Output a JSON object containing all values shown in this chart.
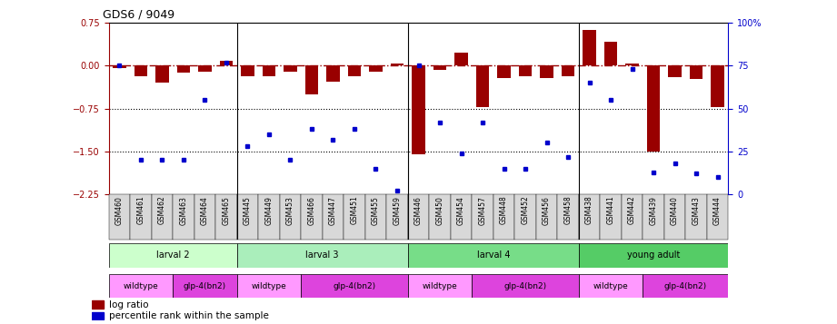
{
  "title": "GDS6 / 9049",
  "samples": [
    "GSM460",
    "GSM461",
    "GSM462",
    "GSM463",
    "GSM464",
    "GSM465",
    "GSM445",
    "GSM449",
    "GSM453",
    "GSM466",
    "GSM447",
    "GSM451",
    "GSM455",
    "GSM459",
    "GSM446",
    "GSM450",
    "GSM454",
    "GSM457",
    "GSM448",
    "GSM452",
    "GSM456",
    "GSM458",
    "GSM438",
    "GSM441",
    "GSM442",
    "GSM439",
    "GSM440",
    "GSM443",
    "GSM444"
  ],
  "log_ratio": [
    -0.05,
    -0.18,
    -0.3,
    -0.13,
    -0.1,
    0.08,
    -0.18,
    -0.18,
    -0.1,
    -0.5,
    -0.28,
    -0.18,
    -0.1,
    0.04,
    -1.55,
    -0.08,
    0.22,
    -0.72,
    -0.22,
    -0.18,
    -0.22,
    -0.18,
    0.62,
    0.42,
    0.03,
    -1.5,
    -0.2,
    -0.23,
    -0.72
  ],
  "percentile": [
    75,
    20,
    20,
    20,
    55,
    77,
    28,
    35,
    20,
    38,
    32,
    38,
    15,
    2,
    75,
    42,
    24,
    42,
    15,
    15,
    30,
    22,
    65,
    55,
    73,
    13,
    18,
    12,
    10
  ],
  "ylim_left": [
    -2.25,
    0.75
  ],
  "left_ticks": [
    0.75,
    0.0,
    -0.75,
    -1.5,
    -2.25
  ],
  "right_ticks": [
    100,
    75,
    50,
    25,
    0
  ],
  "bar_color": "#990000",
  "marker_color": "#0000cc",
  "hline0_color": "#990000",
  "hline0_style": "-.",
  "hline_dotted_color": "#000000",
  "hline_dotted_style": ":",
  "dev_stages": [
    {
      "label": "larval 2",
      "start": 0,
      "end": 6,
      "color": "#ccffcc"
    },
    {
      "label": "larval 3",
      "start": 6,
      "end": 14,
      "color": "#aaeebb"
    },
    {
      "label": "larval 4",
      "start": 14,
      "end": 22,
      "color": "#77dd88"
    },
    {
      "label": "young adult",
      "start": 22,
      "end": 29,
      "color": "#55cc66"
    }
  ],
  "strains": [
    {
      "label": "wildtype",
      "start": 0,
      "end": 3,
      "color": "#ff99ff"
    },
    {
      "label": "glp-4(bn2)",
      "start": 3,
      "end": 6,
      "color": "#dd44dd"
    },
    {
      "label": "wildtype",
      "start": 6,
      "end": 9,
      "color": "#ff99ff"
    },
    {
      "label": "glp-4(bn2)",
      "start": 9,
      "end": 14,
      "color": "#dd44dd"
    },
    {
      "label": "wildtype",
      "start": 14,
      "end": 17,
      "color": "#ff99ff"
    },
    {
      "label": "glp-4(bn2)",
      "start": 17,
      "end": 22,
      "color": "#dd44dd"
    },
    {
      "label": "wildtype",
      "start": 22,
      "end": 25,
      "color": "#ff99ff"
    },
    {
      "label": "glp-4(bn2)",
      "start": 25,
      "end": 29,
      "color": "#dd44dd"
    }
  ],
  "group_boundaries": [
    6,
    14,
    22
  ],
  "legend_items": [
    {
      "label": "log ratio",
      "color": "#990000"
    },
    {
      "label": "percentile rank within the sample",
      "color": "#0000cc"
    }
  ],
  "fig_width": 9.21,
  "fig_height": 3.57,
  "dpi": 100
}
